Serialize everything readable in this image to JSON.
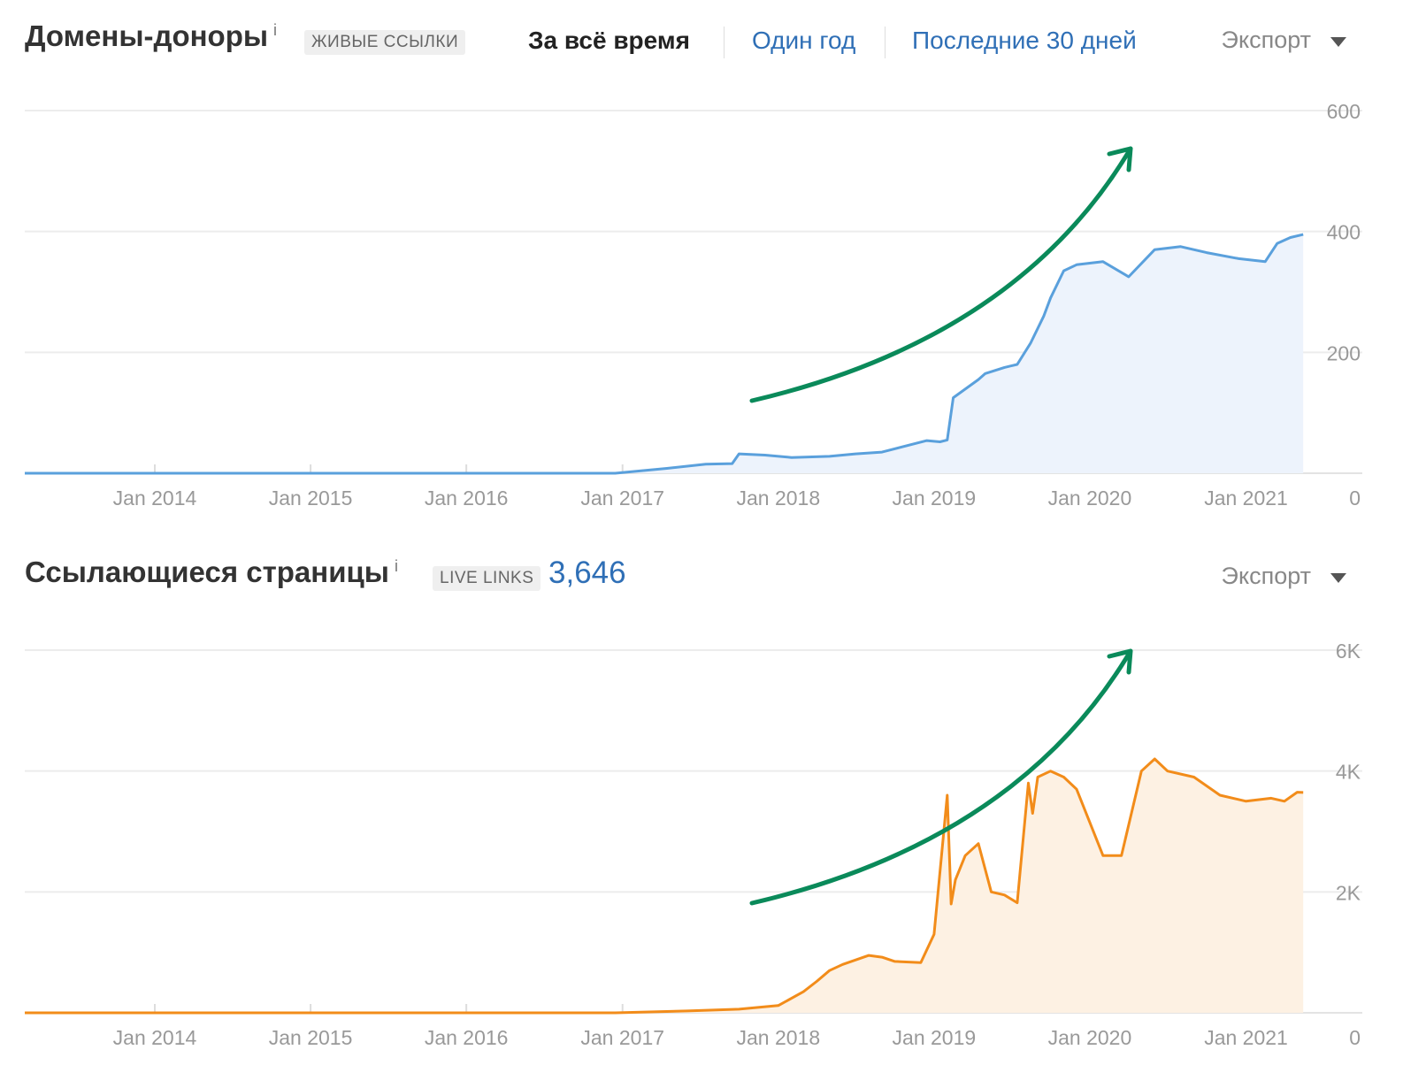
{
  "panels": [
    {
      "title": "Домены-доноры",
      "info": "i",
      "badge": "ЖИВЫЕ ССЫЛКИ",
      "tabs": [
        {
          "label": "За всё время",
          "active": true
        },
        {
          "label": "Один год",
          "active": false
        },
        {
          "label": "Последние 30 дней",
          "active": false
        }
      ],
      "export": "Экспорт"
    },
    {
      "title": "Ссылающиеся страницы",
      "info": "i",
      "badge": "LIVE LINKS",
      "count": "3,646",
      "export": "Экспорт"
    }
  ],
  "colors": {
    "referring_domains": "#5aa0dc",
    "referring_domains_fill": "#edf3fc",
    "referring_pages": "#f28c1a",
    "referring_pages_fill": "#fdf1e3",
    "arrow": "#0a8a5a",
    "link": "#2f6fb6"
  },
  "chart_data": [
    {
      "type": "area",
      "series": [
        {
          "values_y": "left"
        }
      ],
      "x": [
        "2013-03-01",
        "2016-12-15",
        "2017-04-15",
        "2017-07-15",
        "2017-09-15",
        "2017-10-01",
        "2017-12-01",
        "2018-02-01",
        "2018-05-01",
        "2018-07-01",
        "2018-09-01",
        "2018-12-15",
        "2019-01-15",
        "2019-02-01",
        "2019-02-15",
        "2019-04-15",
        "2019-05-01",
        "2019-06-15",
        "2019-07-15",
        "2019-08-15",
        "2019-09-15",
        "2019-10-01",
        "2019-11-01",
        "2019-12-01",
        "2020-02-01",
        "2020-04-01",
        "2020-06-01",
        "2020-08-01",
        "2020-10-01",
        "2020-12-15",
        "2021-02-15",
        "2021-03-15",
        "2021-04-15",
        "2021-05-15"
      ],
      "y": [
        0,
        0,
        8,
        15,
        16,
        32,
        30,
        26,
        28,
        32,
        35,
        54,
        52,
        55,
        125,
        155,
        165,
        175,
        180,
        215,
        260,
        290,
        335,
        345,
        350,
        325,
        370,
        375,
        365,
        355,
        350,
        380,
        390,
        395
      ],
      "xticks": [
        "Jan 2014",
        "Jan 2015",
        "Jan 2016",
        "Jan 2017",
        "Jan 2018",
        "Jan 2019",
        "Jan 2020",
        "Jan 2021"
      ],
      "yticks": [
        "0",
        "200",
        "400",
        "600"
      ],
      "ylim": [
        0,
        600
      ],
      "y_axis_side": "right",
      "grid": true
    },
    {
      "type": "area",
      "x": [
        "2013-03-01",
        "2016-12-15",
        "2017-06-01",
        "2017-10-01",
        "2018-01-01",
        "2018-03-01",
        "2018-04-01",
        "2018-05-01",
        "2018-06-01",
        "2018-08-01",
        "2018-09-01",
        "2018-10-01",
        "2018-12-01",
        "2019-01-01",
        "2019-02-01",
        "2019-02-10",
        "2019-02-20",
        "2019-03-15",
        "2019-04-15",
        "2019-05-15",
        "2019-06-15",
        "2019-07-15",
        "2019-08-10",
        "2019-08-20",
        "2019-09-01",
        "2019-10-01",
        "2019-11-01",
        "2019-12-01",
        "2020-02-01",
        "2020-03-15",
        "2020-05-01",
        "2020-06-01",
        "2020-07-01",
        "2020-09-01",
        "2020-11-01",
        "2021-01-01",
        "2021-03-01",
        "2021-04-01",
        "2021-05-01",
        "2021-05-15"
      ],
      "y": [
        0,
        0,
        30,
        60,
        120,
        350,
        520,
        700,
        800,
        950,
        920,
        850,
        830,
        1300,
        3600,
        1800,
        2200,
        2600,
        2800,
        2000,
        1950,
        1820,
        3800,
        3300,
        3900,
        4000,
        3900,
        3700,
        2600,
        2600,
        4000,
        4200,
        4000,
        3900,
        3600,
        3500,
        3550,
        3500,
        3650,
        3646
      ],
      "xticks": [
        "Jan 2014",
        "Jan 2015",
        "Jan 2016",
        "Jan 2017",
        "Jan 2018",
        "Jan 2019",
        "Jan 2020",
        "Jan 2021"
      ],
      "yticks": [
        "0",
        "2K",
        "4K",
        "6K"
      ],
      "ylim": [
        0,
        6000
      ],
      "y_axis_side": "right",
      "grid": true
    }
  ]
}
